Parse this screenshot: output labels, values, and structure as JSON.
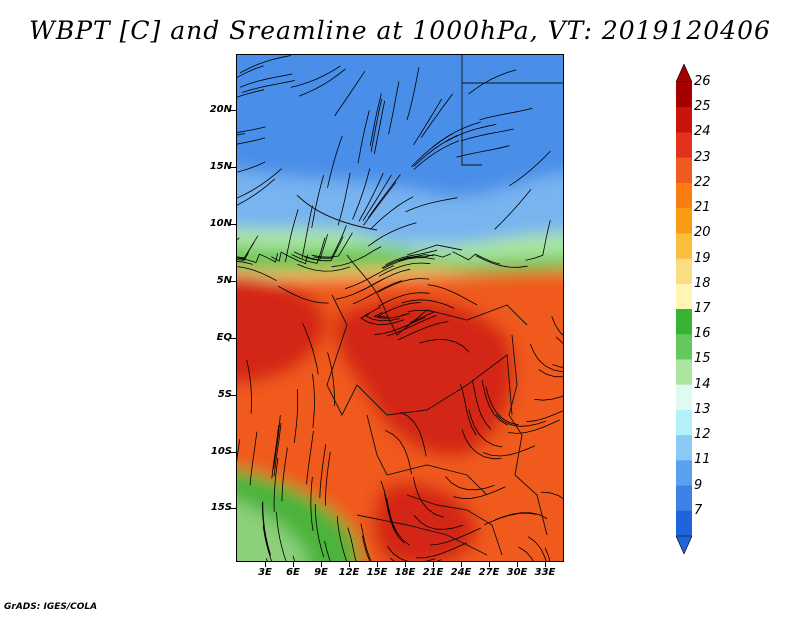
{
  "title": "WBPT [C] and Sreamline at 1000hPa, VT: 2019120406",
  "footer": "GrADS: IGES/COLA",
  "lat_labels": [
    "20N",
    "15N",
    "10N",
    "5N",
    "EQ",
    "5S",
    "10S",
    "15S"
  ],
  "lon_labels": [
    "3E",
    "6E",
    "9E",
    "12E",
    "15E",
    "18E",
    "21E",
    "24E",
    "27E",
    "30E",
    "33E"
  ],
  "colorbar": {
    "labels": [
      "26",
      "25",
      "24",
      "23",
      "22",
      "21",
      "20",
      "19",
      "18",
      "17",
      "16",
      "15",
      "14",
      "13",
      "12",
      "11",
      "9",
      "7"
    ],
    "colors": [
      "#a50000",
      "#c8140a",
      "#e1321e",
      "#f05a1e",
      "#fa7d14",
      "#fa9b14",
      "#fabe3c",
      "#fadc82",
      "#fff5b4",
      "#37b432",
      "#64c85a",
      "#aae6a0",
      "#e1faf0",
      "#b4f0fa",
      "#8cc8f5",
      "#5aa0f0",
      "#3c82e6",
      "#1e64dc"
    ],
    "top_arrow_color": "#a50000",
    "bottom_arrow_color": "#1e64dc"
  },
  "map": {
    "field": "WBPT [C] at 1000hPa",
    "lat_range": [
      -20,
      24
    ],
    "lon_range": [
      0,
      35
    ],
    "zones": {
      "north_color": "#4a8ee8",
      "mid_north_color": "#78b4f0",
      "transition_color": "#aae6a0",
      "sahel_color": "#5cbf4a",
      "warm_color": "#f05a1e",
      "hot_color": "#d42812",
      "southwest_color": "#4cb43a"
    }
  }
}
